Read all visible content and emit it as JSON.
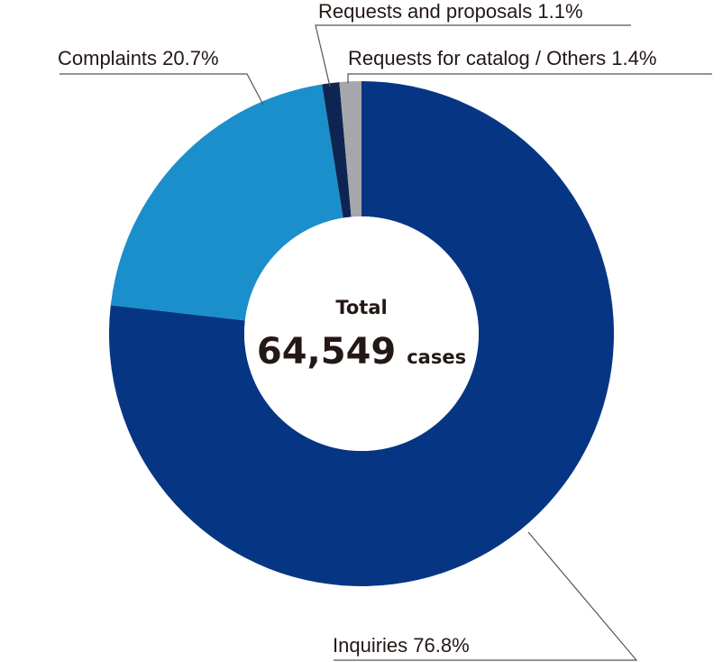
{
  "chart_data": {
    "type": "pie",
    "variant": "donut",
    "categories": [
      "Inquiries",
      "Complaints",
      "Requests and proposals",
      "Requests for catalog / Others"
    ],
    "values": [
      76.8,
      20.7,
      1.1,
      1.4
    ],
    "unit": "%",
    "labels": [
      "Inquiries 76.8%",
      "Complaints 20.7%",
      "Requests and proposals 1.1%",
      "Requests for catalog / Others 1.4%"
    ],
    "colors": [
      "#063683",
      "#1b8fcb",
      "#0e2452",
      "#a5a7aa"
    ],
    "center": {
      "title": "Total",
      "value": "64,549",
      "unit": "cases"
    }
  }
}
